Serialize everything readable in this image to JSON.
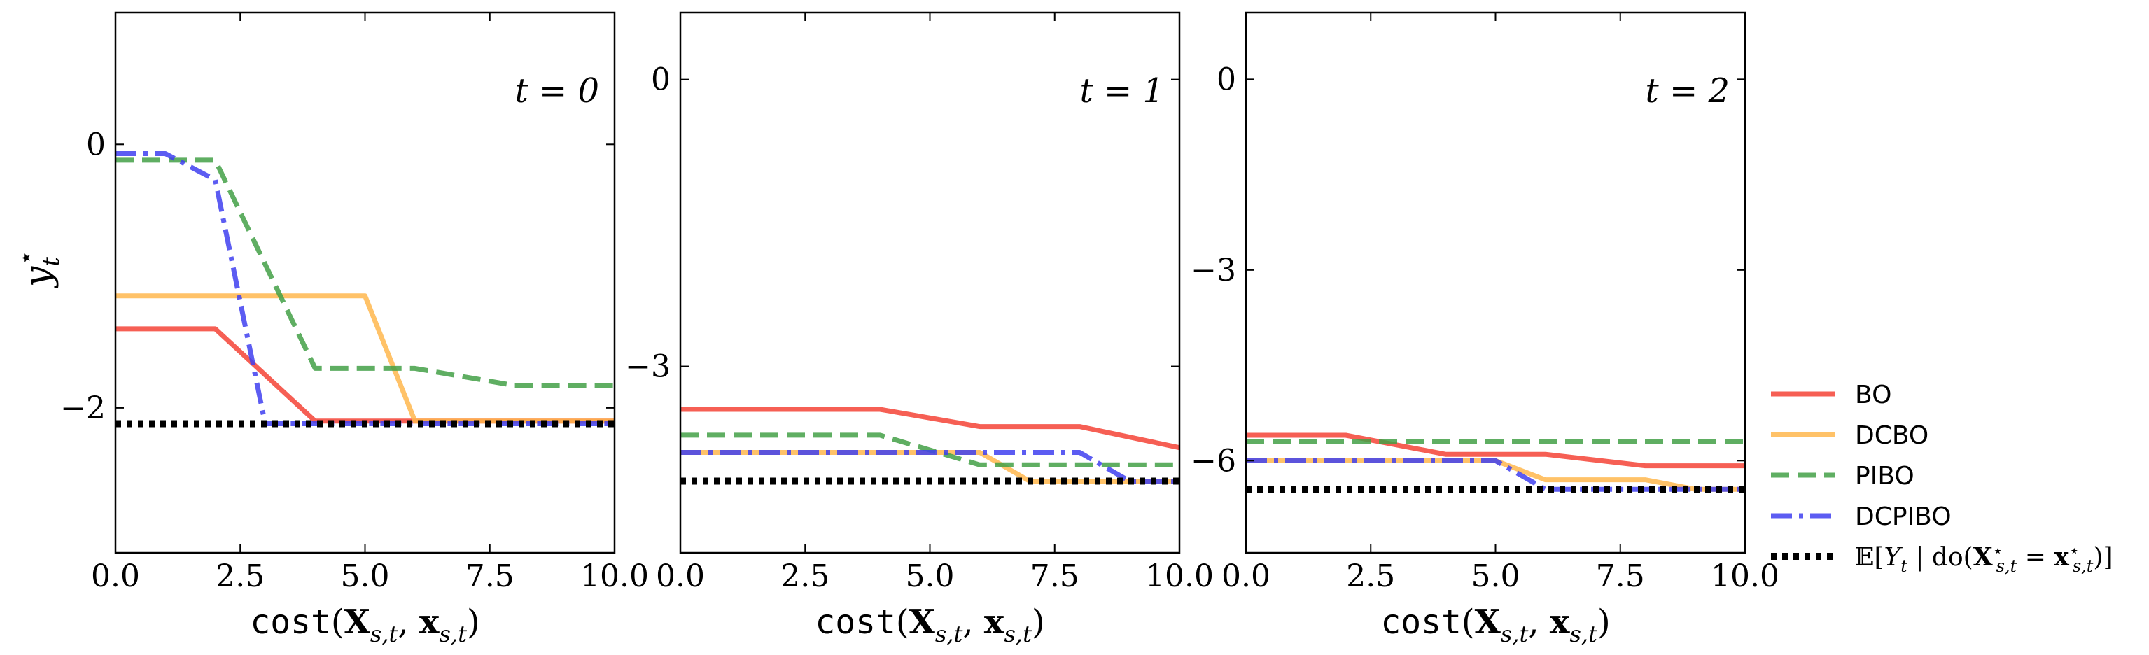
{
  "chart_data": [
    {
      "type": "line",
      "panel_label": "t = 0",
      "xlabel": "cost(X_{s,t}, x_{s,t})",
      "ylabel": "y_t^*",
      "xlim": [
        0,
        10
      ],
      "ylim": [
        -3.1,
        1.0
      ],
      "xticks": [
        0.0,
        2.5,
        5.0,
        7.5,
        10.0
      ],
      "xtick_labels": [
        "0.0",
        "2.5",
        "5.0",
        "7.5",
        "10.0"
      ],
      "yticks": [
        0,
        -2
      ],
      "ytick_labels": [
        "0",
        "−2"
      ],
      "series": [
        {
          "name": "BO",
          "x": [
            0,
            2,
            4,
            10
          ],
          "y": [
            -1.4,
            -1.4,
            -2.1,
            -2.1
          ]
        },
        {
          "name": "DCBO",
          "x": [
            0,
            5,
            6,
            10
          ],
          "y": [
            -1.15,
            -1.15,
            -2.1,
            -2.1
          ]
        },
        {
          "name": "PIBO",
          "x": [
            0,
            2,
            4,
            6,
            8,
            10
          ],
          "y": [
            -0.12,
            -0.12,
            -1.7,
            -1.7,
            -1.83,
            -1.83
          ]
        },
        {
          "name": "DCPIBO",
          "x": [
            0,
            1,
            2,
            3,
            10
          ],
          "y": [
            -0.07,
            -0.07,
            -0.27,
            -2.12,
            -2.12
          ]
        },
        {
          "name": "E[Y_t | do(X*_{s,t} = x*_{s,t})]",
          "x": [
            0,
            10
          ],
          "y": [
            -2.12,
            -2.12
          ]
        }
      ]
    },
    {
      "type": "line",
      "panel_label": "t = 1",
      "xlabel": "cost(X_{s,t}, x_{s,t})",
      "ylabel": "",
      "xlim": [
        0,
        10
      ],
      "ylim": [
        -4.95,
        0.7
      ],
      "xticks": [
        0.0,
        2.5,
        5.0,
        7.5,
        10.0
      ],
      "xtick_labels": [
        "0.0",
        "2.5",
        "5.0",
        "7.5",
        "10.0"
      ],
      "yticks": [
        0,
        -3
      ],
      "ytick_labels": [
        "0",
        "−3"
      ],
      "series": [
        {
          "name": "BO",
          "x": [
            0,
            4,
            6,
            8,
            10
          ],
          "y": [
            -3.45,
            -3.45,
            -3.63,
            -3.63,
            -3.85
          ]
        },
        {
          "name": "DCBO",
          "x": [
            0,
            6,
            7,
            10
          ],
          "y": [
            -3.9,
            -3.9,
            -4.2,
            -4.2
          ]
        },
        {
          "name": "PIBO",
          "x": [
            0,
            4,
            6,
            10
          ],
          "y": [
            -3.72,
            -3.72,
            -4.03,
            -4.03
          ]
        },
        {
          "name": "DCPIBO",
          "x": [
            0,
            8,
            9,
            10
          ],
          "y": [
            -3.9,
            -3.9,
            -4.2,
            -4.2
          ]
        },
        {
          "name": "E[Y_t | do(X*_{s,t} = x*_{s,t})]",
          "x": [
            0,
            10
          ],
          "y": [
            -4.2,
            -4.2
          ]
        }
      ]
    },
    {
      "type": "line",
      "panel_label": "t = 2",
      "xlabel": "cost(X_{s,t}, x_{s,t})",
      "ylabel": "",
      "xlim": [
        0,
        10
      ],
      "ylim": [
        -7.45,
        1.05
      ],
      "xticks": [
        0.0,
        2.5,
        5.0,
        7.5,
        10.0
      ],
      "xtick_labels": [
        "0.0",
        "2.5",
        "5.0",
        "7.5",
        "10.0"
      ],
      "yticks": [
        0,
        -3,
        -6
      ],
      "ytick_labels": [
        "0",
        "−3",
        "−6"
      ],
      "series": [
        {
          "name": "BO",
          "x": [
            0,
            2,
            4,
            6,
            8,
            10
          ],
          "y": [
            -5.6,
            -5.6,
            -5.9,
            -5.9,
            -6.08,
            -6.08
          ]
        },
        {
          "name": "DCBO",
          "x": [
            0,
            5,
            6,
            8,
            9,
            10
          ],
          "y": [
            -6.0,
            -6.0,
            -6.3,
            -6.3,
            -6.45,
            -6.45
          ]
        },
        {
          "name": "PIBO",
          "x": [
            0,
            10
          ],
          "y": [
            -5.7,
            -5.7
          ]
        },
        {
          "name": "DCPIBO",
          "x": [
            0,
            5,
            6,
            10
          ],
          "y": [
            -6.0,
            -6.0,
            -6.45,
            -6.45
          ]
        },
        {
          "name": "E[Y_t | do(X*_{s,t} = x*_{s,t})]",
          "x": [
            0,
            10
          ],
          "y": [
            -6.45,
            -6.45
          ]
        }
      ]
    }
  ],
  "legend": {
    "placement": "right",
    "entries": [
      {
        "label": "BO",
        "color": "#f44336",
        "dash": "solid"
      },
      {
        "label": "DCBO",
        "color": "#ffb74d",
        "dash": "solid"
      },
      {
        "label": "PIBO",
        "color": "#43a047",
        "dash": "dashed"
      },
      {
        "label": "DCPIBO",
        "color": "#3f3ff0",
        "dash": "dashdot"
      },
      {
        "label": "E[Y_t | do(X*_{s,t} = x*_{s,t})]",
        "color": "#000000",
        "dash": "dotted"
      }
    ]
  }
}
